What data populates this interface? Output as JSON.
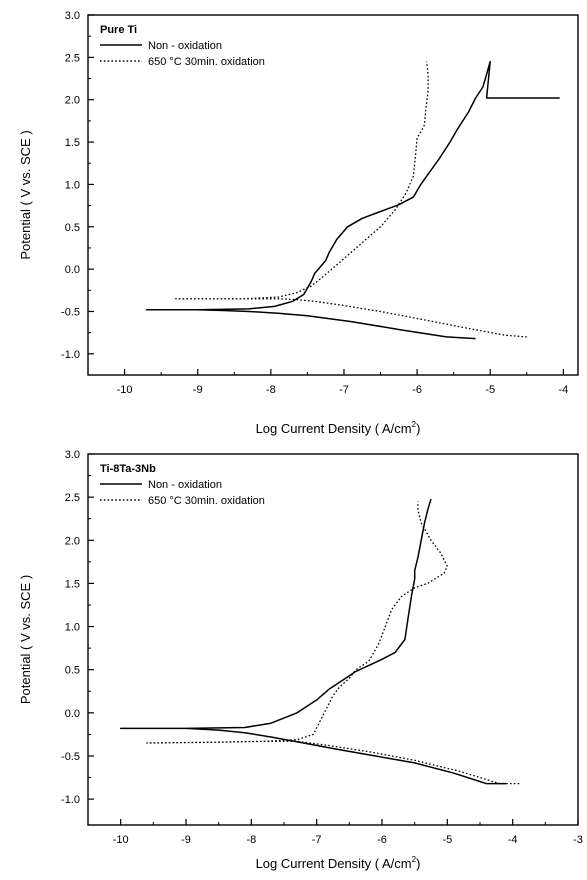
{
  "chart_data": [
    {
      "type": "line",
      "title": "",
      "panel_label": "Pure Ti",
      "xlabel": "Log Current Density ( A/cm",
      "xlabel_sup": "2",
      "xlabel_close": ")",
      "ylabel": "Potential ( V vs. SCE )",
      "xlim": [
        -10.5,
        -3.8
      ],
      "ylim": [
        -1.25,
        3.0
      ],
      "x_ticks": [
        -10,
        -9,
        -8,
        -7,
        -6,
        -5,
        -4
      ],
      "x_tick_labels": [
        "-10",
        "-9",
        "-8",
        "-7",
        "-6",
        "-5",
        "-4"
      ],
      "y_ticks": [
        -1.0,
        -0.5,
        0.0,
        0.5,
        1.0,
        1.5,
        2.0,
        2.5,
        3.0
      ],
      "y_tick_labels": [
        "-1.0",
        "-0.5",
        "0.0",
        "0.5",
        "1.0",
        "1.5",
        "2.0",
        "2.5",
        "3.0"
      ],
      "grid": false,
      "legend_position": "top-left",
      "series": [
        {
          "name": "Non - oxidation",
          "style": "solid",
          "x": [
            -5.2,
            -5.6,
            -6.2,
            -6.9,
            -7.5,
            -7.9,
            -8.3,
            -8.6,
            -9.0,
            -9.7,
            -9.0,
            -8.3,
            -7.95,
            -7.7,
            -7.55,
            -7.45,
            -7.4,
            -7.35,
            -7.3,
            -7.25,
            -7.2,
            -7.1,
            -6.95,
            -6.75,
            -6.5,
            -6.25,
            -6.05,
            -5.95,
            -5.85,
            -5.7,
            -5.55,
            -5.45,
            -5.3,
            -5.2,
            -5.1,
            -5.05,
            -5.0,
            -5.05,
            -4.05
          ],
          "y": [
            -0.82,
            -0.8,
            -0.72,
            -0.62,
            -0.55,
            -0.52,
            -0.5,
            -0.49,
            -0.48,
            -0.48,
            -0.48,
            -0.47,
            -0.44,
            -0.38,
            -0.3,
            -0.15,
            -0.05,
            0.0,
            0.05,
            0.1,
            0.2,
            0.35,
            0.5,
            0.6,
            0.68,
            0.76,
            0.85,
            1.0,
            1.12,
            1.3,
            1.5,
            1.65,
            1.85,
            2.02,
            2.15,
            2.3,
            2.45,
            2.02,
            2.02
          ]
        },
        {
          "name": "650 °C 30min. oxidation",
          "style": "dotted",
          "x": [
            -4.5,
            -4.8,
            -5.3,
            -5.9,
            -6.5,
            -7.0,
            -7.4,
            -7.65,
            -7.9,
            -8.4,
            -9.3,
            -8.4,
            -7.9,
            -7.65,
            -7.45,
            -7.3,
            -7.1,
            -6.9,
            -6.7,
            -6.5,
            -6.3,
            -6.15,
            -6.05,
            -6.02,
            -6.0,
            -5.95,
            -5.9,
            -5.88,
            -5.85,
            -5.85,
            -5.87
          ],
          "y": [
            -0.8,
            -0.78,
            -0.7,
            -0.6,
            -0.5,
            -0.43,
            -0.38,
            -0.36,
            -0.35,
            -0.35,
            -0.35,
            -0.35,
            -0.33,
            -0.28,
            -0.2,
            -0.1,
            0.05,
            0.2,
            0.35,
            0.5,
            0.7,
            0.9,
            1.1,
            1.35,
            1.55,
            1.62,
            1.7,
            1.9,
            2.1,
            2.3,
            2.45
          ]
        }
      ]
    },
    {
      "type": "line",
      "title": "",
      "panel_label": "Ti-8Ta-3Nb",
      "xlabel": "Log Current Density ( A/cm",
      "xlabel_sup": "2",
      "xlabel_close": ")",
      "ylabel": "Potential ( V vs. SCE )",
      "xlim": [
        -10.5,
        -3.0
      ],
      "ylim": [
        -1.3,
        3.0
      ],
      "x_ticks": [
        -10,
        -9,
        -8,
        -7,
        -6,
        -5,
        -4,
        -3
      ],
      "x_tick_labels": [
        "-10",
        "-9",
        "-8",
        "-7",
        "-6",
        "-5",
        "-4",
        "-3"
      ],
      "y_ticks": [
        -1.0,
        -0.5,
        0.0,
        0.5,
        1.0,
        1.5,
        2.0,
        2.5,
        3.0
      ],
      "y_tick_labels": [
        "-1.0",
        "-0.5",
        "0.0",
        "0.5",
        "1.0",
        "1.5",
        "2.0",
        "2.5",
        "3.0"
      ],
      "grid": false,
      "legend_position": "top-left",
      "series": [
        {
          "name": "Non - oxidation",
          "style": "solid",
          "x": [
            -4.1,
            -4.4,
            -4.9,
            -5.5,
            -6.1,
            -6.7,
            -7.2,
            -7.7,
            -8.1,
            -8.5,
            -9.0,
            -10.0,
            -9.0,
            -8.1,
            -7.7,
            -7.3,
            -7.0,
            -6.8,
            -6.6,
            -6.4,
            -6.2,
            -6.0,
            -5.8,
            -5.65,
            -5.6,
            -5.55,
            -5.5,
            -5.5,
            -5.45,
            -5.4,
            -5.35,
            -5.3,
            -5.25
          ],
          "y": [
            -0.82,
            -0.82,
            -0.7,
            -0.58,
            -0.5,
            -0.42,
            -0.35,
            -0.28,
            -0.23,
            -0.2,
            -0.18,
            -0.18,
            -0.18,
            -0.17,
            -0.12,
            0.0,
            0.15,
            0.28,
            0.38,
            0.48,
            0.55,
            0.62,
            0.7,
            0.85,
            1.1,
            1.35,
            1.55,
            1.65,
            1.8,
            2.0,
            2.2,
            2.35,
            2.48
          ]
        },
        {
          "name": "650 °C 30min. oxidation",
          "style": "dotted",
          "x": [
            -3.9,
            -4.2,
            -4.8,
            -5.5,
            -6.2,
            -6.8,
            -7.3,
            -7.8,
            -8.5,
            -9.6,
            -8.5,
            -7.8,
            -7.3,
            -7.05,
            -6.95,
            -6.85,
            -6.75,
            -6.65,
            -6.5,
            -6.4,
            -6.2,
            -6.05,
            -5.95,
            -5.85,
            -5.7,
            -5.5,
            -5.3,
            -5.05,
            -5.0,
            -5.1,
            -5.25,
            -5.4,
            -5.45,
            -5.45
          ],
          "y": [
            -0.82,
            -0.82,
            -0.68,
            -0.55,
            -0.45,
            -0.38,
            -0.33,
            -0.33,
            -0.34,
            -0.35,
            -0.34,
            -0.33,
            -0.31,
            -0.25,
            -0.1,
            0.05,
            0.2,
            0.3,
            0.4,
            0.5,
            0.6,
            0.8,
            1.0,
            1.2,
            1.35,
            1.45,
            1.5,
            1.62,
            1.7,
            1.85,
            2.0,
            2.2,
            2.35,
            2.45
          ]
        }
      ]
    }
  ]
}
